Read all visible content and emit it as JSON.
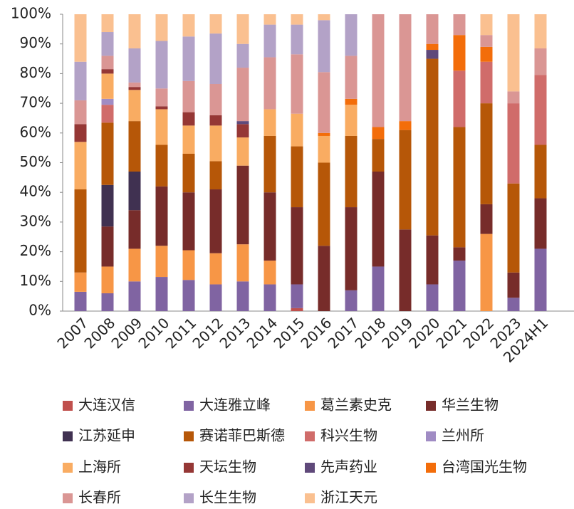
{
  "chart_data": {
    "type": "stacked_bar_100",
    "categories": [
      "2007",
      "2008",
      "2009",
      "2010",
      "2011",
      "2012",
      "2013",
      "2014",
      "2015",
      "2016",
      "2017",
      "2018",
      "2019",
      "2020",
      "2021",
      "2022",
      "2023",
      "2024H1"
    ],
    "ylim": [
      0,
      100
    ],
    "yticks": [
      {
        "value": 0,
        "label": "0%"
      },
      {
        "value": 10,
        "label": "10%"
      },
      {
        "value": 20,
        "label": "20%"
      },
      {
        "value": 30,
        "label": "30%"
      },
      {
        "value": 40,
        "label": "40%"
      },
      {
        "value": 50,
        "label": "50%"
      },
      {
        "value": 60,
        "label": "60%"
      },
      {
        "value": 70,
        "label": "70%"
      },
      {
        "value": 80,
        "label": "80%"
      },
      {
        "value": 90,
        "label": "90%"
      },
      {
        "value": 100,
        "label": "100%"
      }
    ],
    "legend": "bottom",
    "series": [
      {
        "name": "大连汉信",
        "color": "#c0504d",
        "values": [
          0,
          0,
          0,
          0,
          0,
          0,
          0,
          0,
          1,
          0,
          0,
          0,
          0,
          0,
          0,
          0,
          0,
          0
        ]
      },
      {
        "name": "大连雅立峰",
        "color": "#8064a2",
        "values": [
          6.5,
          6,
          10,
          11.5,
          10.5,
          9,
          10,
          9,
          8,
          0,
          7,
          15,
          0,
          9,
          17,
          0,
          4.5,
          21
        ]
      },
      {
        "name": "葛兰素史克",
        "color": "#f79646",
        "values": [
          6.5,
          9,
          11,
          10.5,
          10,
          10.5,
          12.5,
          8,
          0,
          0,
          0,
          0,
          0,
          0,
          0,
          26,
          0,
          0
        ]
      },
      {
        "name": "华兰生物",
        "color": "#772c2a",
        "values": [
          0,
          13.5,
          13,
          20,
          19.5,
          21.5,
          26.5,
          23,
          26,
          22,
          28,
          32,
          27.5,
          16.5,
          4.5,
          10,
          8.5,
          17
        ]
      },
      {
        "name": "江苏延申",
        "color": "#403151",
        "values": [
          0,
          14,
          13,
          0,
          0,
          0,
          0,
          0,
          0,
          0,
          0,
          0,
          0,
          0,
          0,
          0,
          0,
          0
        ]
      },
      {
        "name": "赛诺菲巴斯德",
        "color": "#b65708",
        "values": [
          28,
          21,
          17,
          14,
          13,
          9.5,
          0,
          19,
          20.5,
          28,
          24,
          11,
          33.5,
          59.5,
          40.5,
          34,
          30,
          18
        ]
      },
      {
        "name": "科兴生物",
        "color": "#d06c6a",
        "values": [
          0,
          6,
          0,
          0,
          0,
          0,
          0,
          0,
          0,
          0,
          0,
          0,
          0,
          0,
          19,
          14,
          27,
          23.5
        ]
      },
      {
        "name": "兰州所",
        "color": "#a08cc4",
        "values": [
          0,
          2,
          0,
          0,
          0,
          0,
          0,
          0,
          0,
          0,
          0,
          0,
          0,
          0,
          0,
          0,
          0,
          0
        ]
      },
      {
        "name": "上海所",
        "color": "#f9ac62",
        "values": [
          16,
          8.5,
          10.5,
          12,
          9.5,
          12,
          9.5,
          9,
          11,
          9,
          10.5,
          0,
          0,
          0,
          0,
          0,
          0,
          0
        ]
      },
      {
        "name": "天坛生物",
        "color": "#953735",
        "values": [
          6,
          1.5,
          1,
          1,
          4.5,
          3.5,
          4.5,
          0,
          0,
          0,
          0,
          0,
          0,
          0,
          0,
          0,
          0,
          0
        ]
      },
      {
        "name": "先声药业",
        "color": "#5f497a",
        "values": [
          0,
          0,
          0,
          0,
          0,
          0,
          1,
          0,
          0,
          0,
          0,
          0,
          0,
          3,
          0,
          0,
          0,
          0
        ]
      },
      {
        "name": "台湾国光生物",
        "color": "#f36d0a",
        "values": [
          0,
          0,
          0,
          0,
          0,
          0,
          0,
          0,
          0,
          1,
          2,
          4,
          3,
          2,
          12,
          5,
          0,
          0
        ]
      },
      {
        "name": "长春所",
        "color": "#da9694",
        "values": [
          8,
          4.5,
          1.5,
          6,
          10.5,
          10.5,
          18,
          17.5,
          20,
          20.5,
          14.5,
          38,
          36,
          10,
          7,
          4,
          4,
          9
        ]
      },
      {
        "name": "长生生物",
        "color": "#b3a2c7",
        "values": [
          13,
          8,
          11.5,
          16,
          15,
          17,
          8,
          11,
          10,
          17.5,
          14,
          0,
          0,
          0,
          0,
          0,
          0,
          0
        ]
      },
      {
        "name": "浙江天元",
        "color": "#fac090",
        "values": [
          16,
          6,
          11.5,
          9,
          7.5,
          6.5,
          10,
          3.5,
          3.5,
          2,
          0,
          0,
          0,
          0,
          0,
          7,
          26,
          11.5
        ]
      }
    ]
  }
}
